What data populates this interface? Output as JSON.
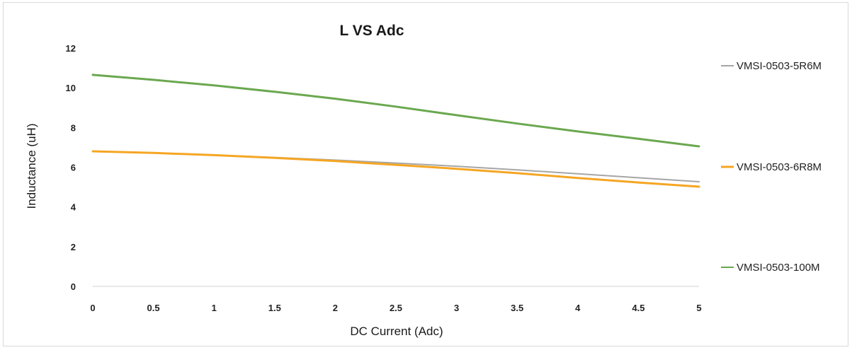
{
  "chart_data": {
    "type": "line",
    "title": "L VS Adc",
    "xlabel": "DC Current (Adc)",
    "ylabel": "Inductance (uH)",
    "x": [
      0,
      0.5,
      1,
      1.5,
      2,
      2.5,
      3,
      3.5,
      4,
      4.5,
      5
    ],
    "xticks": [
      "0",
      "0.5",
      "1",
      "1.5",
      "2",
      "2.5",
      "3",
      "3.5",
      "4",
      "4.5",
      "5"
    ],
    "yticks": [
      "0",
      "2",
      "4",
      "6",
      "8",
      "10",
      "12"
    ],
    "xlim": [
      0,
      5
    ],
    "ylim": [
      0,
      12
    ],
    "grid": false,
    "legend_position": "right",
    "series": [
      {
        "name": "VMSI-0503-5R6M",
        "color": "#a6a6a6",
        "values": [
          6.8,
          6.72,
          6.61,
          6.49,
          6.36,
          6.21,
          6.05,
          5.87,
          5.67,
          5.47,
          5.27
        ]
      },
      {
        "name": "VMSI-0503-6R8M",
        "color": "#f5a623",
        "values": [
          6.8,
          6.72,
          6.61,
          6.47,
          6.31,
          6.12,
          5.92,
          5.7,
          5.46,
          5.23,
          5.02
        ]
      },
      {
        "name": "VMSI-0503-100M",
        "color": "#6aa84f",
        "values": [
          10.65,
          10.4,
          10.12,
          9.8,
          9.45,
          9.05,
          8.62,
          8.2,
          7.8,
          7.43,
          7.05
        ]
      }
    ]
  }
}
